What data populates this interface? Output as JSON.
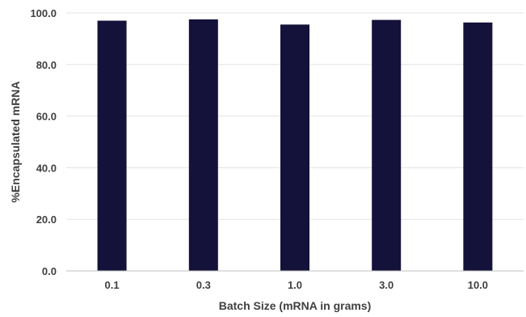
{
  "chart_data": {
    "type": "bar",
    "categories": [
      "0.1",
      "0.3",
      "1.0",
      "3.0",
      "10.0"
    ],
    "values": [
      97.0,
      97.5,
      95.5,
      97.3,
      96.3
    ],
    "xlabel": "Batch Size (mRNA in grams)",
    "ylabel": "%Encapsulated mRNA",
    "ylim": [
      0,
      100
    ],
    "yticks": [
      "0.0",
      "20.0",
      "40.0",
      "60.0",
      "80.0",
      "100.0"
    ],
    "grid": true,
    "bar_color": "#14123a"
  }
}
